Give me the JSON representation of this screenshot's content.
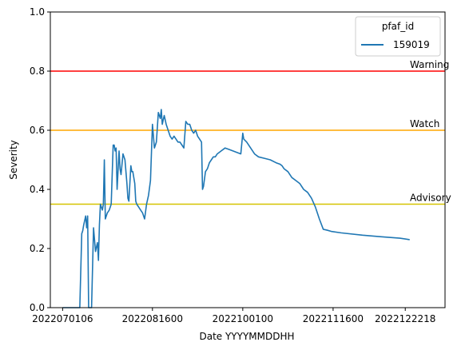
{
  "chart_data": {
    "type": "line",
    "xlabel": "Date YYYYMMDDHH",
    "ylabel": "Severity",
    "ylim": [
      0,
      1
    ],
    "grid": false,
    "legend": {
      "title": "pfaf_id",
      "placement": "top-right"
    },
    "x_ticks": [
      "2022070106",
      "2022081600",
      "2022100100",
      "2022111600",
      "2022122218"
    ],
    "y_ticks": [
      "0.0",
      "0.2",
      "0.4",
      "0.6",
      "0.8",
      "1.0"
    ],
    "thresholds": [
      {
        "label": "Warning",
        "value": 0.8,
        "color": "#ff0000"
      },
      {
        "label": "Watch",
        "value": 0.6,
        "color": "#ffa500"
      },
      {
        "label": "Advisory",
        "value": 0.35,
        "color": "#d4c400"
      }
    ],
    "series": [
      {
        "name": "159019",
        "color": "#1f77b4",
        "dates": [
          "2022-07-01T06",
          "2022-07-02T00",
          "2022-07-10T00",
          "2022-07-11T00",
          "2022-07-11T12",
          "2022-07-12T00",
          "2022-07-13T00",
          "2022-07-13T12",
          "2022-07-14T00",
          "2022-07-14T12",
          "2022-07-15T00",
          "2022-07-16T00",
          "2022-07-17T00",
          "2022-07-18T00",
          "2022-07-19T00",
          "2022-07-19T12",
          "2022-07-20T00",
          "2022-07-20T12",
          "2022-07-21T00",
          "2022-07-21T12",
          "2022-07-22T00",
          "2022-07-22T12",
          "2022-07-23T00",
          "2022-07-24T00",
          "2022-07-25T00",
          "2022-07-25T12",
          "2022-07-26T00",
          "2022-07-27T00",
          "2022-07-27T12",
          "2022-07-28T00",
          "2022-07-28T12",
          "2022-07-29T00",
          "2022-07-30T00",
          "2022-07-30T12",
          "2022-07-31T00",
          "2022-08-01T00",
          "2022-08-02T00",
          "2022-08-03T00",
          "2022-08-03T12",
          "2022-08-04T00",
          "2022-08-05T00",
          "2022-08-05T12",
          "2022-08-06T00",
          "2022-08-07T00",
          "2022-08-07T12",
          "2022-08-08T00",
          "2022-08-09T00",
          "2022-08-10T00",
          "2022-08-11T00",
          "2022-08-12T00",
          "2022-08-13T00",
          "2022-08-14T00",
          "2022-08-15T00",
          "2022-08-16T00",
          "2022-08-17T00",
          "2022-08-18T00",
          "2022-08-19T00",
          "2022-08-20T00",
          "2022-08-20T12",
          "2022-08-21T00",
          "2022-08-22T00",
          "2022-08-23T00",
          "2022-08-24T00",
          "2022-08-25T00",
          "2022-08-26T00",
          "2022-08-27T00",
          "2022-08-28T00",
          "2022-08-29T00",
          "2022-08-30T00",
          "2022-08-31T00",
          "2022-09-01T00",
          "2022-09-02T00",
          "2022-09-03T00",
          "2022-09-04T00",
          "2022-09-05T00",
          "2022-09-06T00",
          "2022-09-07T00",
          "2022-09-08T00",
          "2022-09-09T00",
          "2022-09-10T00",
          "2022-09-10T12",
          "2022-09-11T00",
          "2022-09-12T00",
          "2022-09-13T00",
          "2022-09-14T00",
          "2022-09-15T00",
          "2022-09-16T00",
          "2022-09-17T00",
          "2022-09-18T00",
          "2022-09-20T00",
          "2022-09-22T00",
          "2022-09-24T00",
          "2022-09-26T00",
          "2022-09-28T00",
          "2022-09-30T00",
          "2022-10-01T00",
          "2022-10-01T12",
          "2022-10-03T00",
          "2022-10-05T00",
          "2022-10-07T00",
          "2022-10-09T00",
          "2022-10-12T00",
          "2022-10-15T00",
          "2022-10-18T00",
          "2022-10-20T00",
          "2022-10-21T00",
          "2022-10-22T00",
          "2022-10-24T00",
          "2022-10-26T00",
          "2022-10-28T00",
          "2022-10-30T00",
          "2022-11-01T00",
          "2022-11-03T00",
          "2022-11-05T00",
          "2022-11-07T00",
          "2022-11-09T00",
          "2022-11-11T00",
          "2022-11-13T00",
          "2022-11-15T00",
          "2022-11-20T00",
          "2022-12-01T00",
          "2022-12-10T00",
          "2022-12-20T00",
          "2022-12-25T00"
        ],
        "values": [
          0.0,
          0.0,
          0.0,
          0.25,
          0.26,
          0.28,
          0.31,
          0.27,
          0.31,
          0.0,
          0.0,
          0.0,
          0.27,
          0.19,
          0.22,
          0.16,
          0.28,
          0.35,
          0.34,
          0.33,
          0.35,
          0.5,
          0.3,
          0.32,
          0.33,
          0.34,
          0.35,
          0.55,
          0.55,
          0.53,
          0.54,
          0.4,
          0.53,
          0.47,
          0.45,
          0.52,
          0.5,
          0.42,
          0.37,
          0.36,
          0.48,
          0.46,
          0.46,
          0.42,
          0.36,
          0.35,
          0.34,
          0.33,
          0.32,
          0.3,
          0.35,
          0.38,
          0.43,
          0.62,
          0.54,
          0.56,
          0.66,
          0.64,
          0.67,
          0.62,
          0.65,
          0.62,
          0.6,
          0.58,
          0.57,
          0.58,
          0.57,
          0.56,
          0.56,
          0.55,
          0.54,
          0.63,
          0.62,
          0.62,
          0.6,
          0.59,
          0.6,
          0.58,
          0.57,
          0.56,
          0.4,
          0.41,
          0.46,
          0.47,
          0.49,
          0.5,
          0.51,
          0.51,
          0.52,
          0.53,
          0.54,
          0.535,
          0.53,
          0.525,
          0.52,
          0.59,
          0.57,
          0.56,
          0.54,
          0.52,
          0.51,
          0.505,
          0.5,
          0.49,
          0.485,
          0.48,
          0.47,
          0.46,
          0.44,
          0.43,
          0.42,
          0.4,
          0.39,
          0.37,
          0.34,
          0.3,
          0.265,
          0.262,
          0.258,
          0.253,
          0.245,
          0.24,
          0.235,
          0.23
        ]
      }
    ]
  }
}
